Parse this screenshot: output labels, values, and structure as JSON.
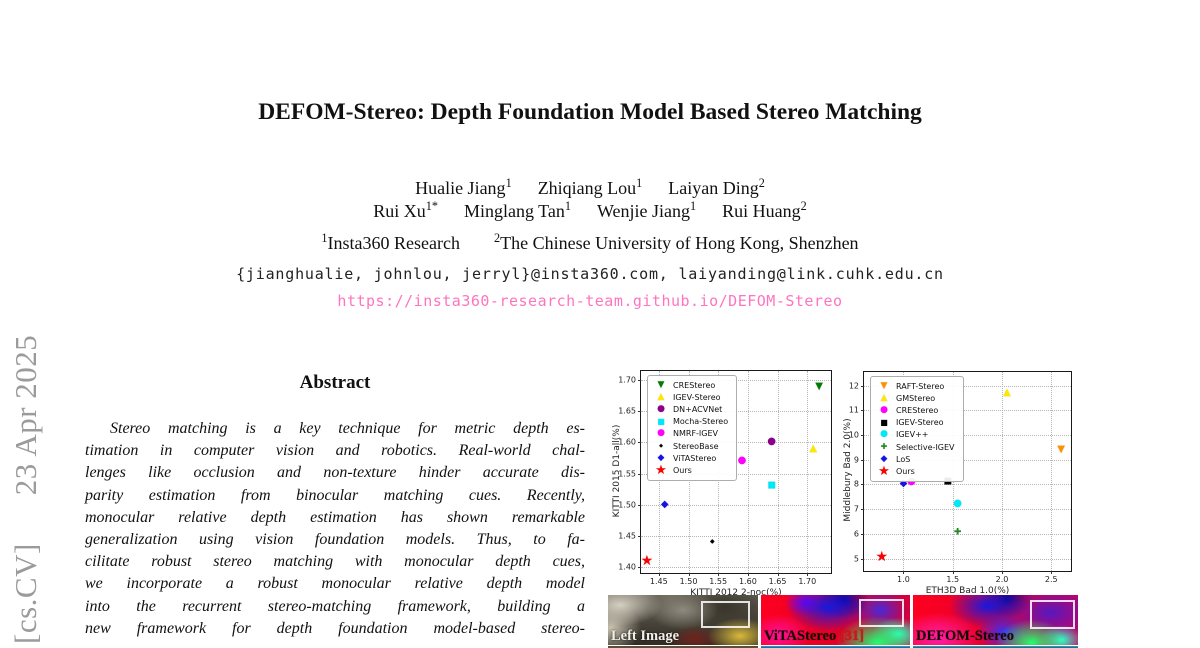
{
  "arxiv_watermark": {
    "text": "[cs.CV]   23 Apr 2025",
    "color": "#9b9b9b"
  },
  "header": {
    "title": "DEFOM-Stereo: Depth Foundation Model Based Stereo Matching",
    "authors_line1": [
      {
        "text": "Hualie Jiang",
        "sup": "1"
      },
      {
        "text": "Zhiqiang Lou",
        "sup": "1"
      },
      {
        "text": "Laiyan Ding",
        "sup": "2"
      }
    ],
    "authors_line2": [
      {
        "text": "Rui Xu",
        "sup": "1*"
      },
      {
        "text": "Minglang Tan",
        "sup": "1"
      },
      {
        "text": "Wenjie Jiang",
        "sup": "1"
      },
      {
        "text": "Rui Huang",
        "sup": "2"
      }
    ],
    "affiliations": [
      {
        "sup": "1",
        "text": "Insta360 Research"
      },
      {
        "sup": "2",
        "text": "The Chinese University of Hong Kong, Shenzhen"
      }
    ],
    "emails": "{jianghualie, johnlou, jerryl}@insta360.com, laiyanding@link.cuhk.edu.cn",
    "url": "https://insta360-research-team.github.io/DEFOM-Stereo",
    "url_color": "#ff74c0"
  },
  "abstract": {
    "heading": "Abstract",
    "lines": [
      "Stereo matching is a key technique for metric depth es-",
      "timation in computer vision and robotics. Real-world chal-",
      "lenges like occlusion and non-texture hinder accurate dis-",
      "parity estimation from binocular matching cues. Recently,",
      "monocular relative depth estimation has shown remarkable",
      "generalization using vision foundation models. Thus, to fa-",
      "cilitate robust stereo matching with monocular depth cues,",
      "we incorporate a robust monocular relative depth model",
      "into the recurrent stereo-matching framework, building a",
      "new framework for depth foundation model-based stereo-"
    ]
  },
  "chart_data": [
    {
      "type": "scatter",
      "xlabel": "KITTI 2012 2-noc(%)",
      "ylabel": "KITTI 2015 D1-all(%)",
      "xlim": [
        1.42,
        1.74
      ],
      "ylim": [
        1.39,
        1.715
      ],
      "xticks": [
        "1.45",
        "1.50",
        "1.55",
        "1.60",
        "1.65",
        "1.70"
      ],
      "yticks": [
        "1.40",
        "1.45",
        "1.50",
        "1.55",
        "1.60",
        "1.65",
        "1.70"
      ],
      "grid": true,
      "legend_position": "upper left",
      "series": [
        {
          "name": "CREStereo",
          "marker": "triangle-down",
          "color": "#007d00",
          "x": 1.72,
          "y": 1.69
        },
        {
          "name": "IGEV-Stereo",
          "marker": "triangle-up",
          "color": "#ffe800",
          "x": 1.71,
          "y": 1.59
        },
        {
          "name": "DN+ACVNet",
          "marker": "circle",
          "color": "#8a008a",
          "x": 1.64,
          "y": 1.6
        },
        {
          "name": "Mocha-Stereo",
          "marker": "square",
          "color": "#00e8f8",
          "x": 1.64,
          "y": 1.53
        },
        {
          "name": "NMRF-IGEV",
          "marker": "circle",
          "color": "#ff00ff",
          "x": 1.59,
          "y": 1.57
        },
        {
          "name": "StereoBase",
          "marker": "dot",
          "color": "#000000",
          "x": 1.54,
          "y": 1.44
        },
        {
          "name": "ViTAStereo",
          "marker": "diamond",
          "color": "#1414e6",
          "x": 1.46,
          "y": 1.5
        },
        {
          "name": "Ours",
          "marker": "star",
          "color": "#ff0000",
          "x": 1.43,
          "y": 1.41
        }
      ]
    },
    {
      "type": "scatter",
      "xlabel": "ETH3D Bad 1.0(%)",
      "ylabel": "Middlebury Bad 2.0(%)",
      "xlim": [
        0.6,
        2.7
      ],
      "ylim": [
        4.5,
        12.55
      ],
      "xticks": [
        "1.0",
        "1.5",
        "2.0",
        "2.5"
      ],
      "yticks": [
        "5",
        "6",
        "7",
        "8",
        "9",
        "10",
        "11",
        "12"
      ],
      "grid": true,
      "legend_position": "upper left",
      "series": [
        {
          "name": "RAFT-Stereo",
          "marker": "triangle-down",
          "color": "#ff9000",
          "x": 2.6,
          "y": 9.4
        },
        {
          "name": "GMStereo",
          "marker": "triangle-up",
          "color": "#ffe800",
          "x": 2.05,
          "y": 11.7
        },
        {
          "name": "CREStereo",
          "marker": "circle",
          "color": "#ff00ff",
          "x": 1.08,
          "y": 8.1
        },
        {
          "name": "IGEV-Stereo",
          "marker": "square",
          "color": "#000000",
          "x": 1.45,
          "y": 8.1
        },
        {
          "name": "IGEV++",
          "marker": "circle",
          "color": "#00e8f8",
          "x": 1.55,
          "y": 7.2
        },
        {
          "name": "Selective-IGEV",
          "marker": "plus",
          "color": "#1e8c1e",
          "x": 1.55,
          "y": 6.05
        },
        {
          "name": "LoS",
          "marker": "diamond",
          "color": "#1414e6",
          "x": 1.0,
          "y": 8.0
        },
        {
          "name": "Ours",
          "marker": "star",
          "color": "#ff0000",
          "x": 0.78,
          "y": 5.05
        }
      ]
    }
  ],
  "figure_images": {
    "panels": [
      {
        "label": "Left Image",
        "cite": ""
      },
      {
        "label": "ViTAStereo",
        "cite": "[31]"
      },
      {
        "label": "DEFOM-Stereo",
        "cite": ""
      }
    ]
  }
}
